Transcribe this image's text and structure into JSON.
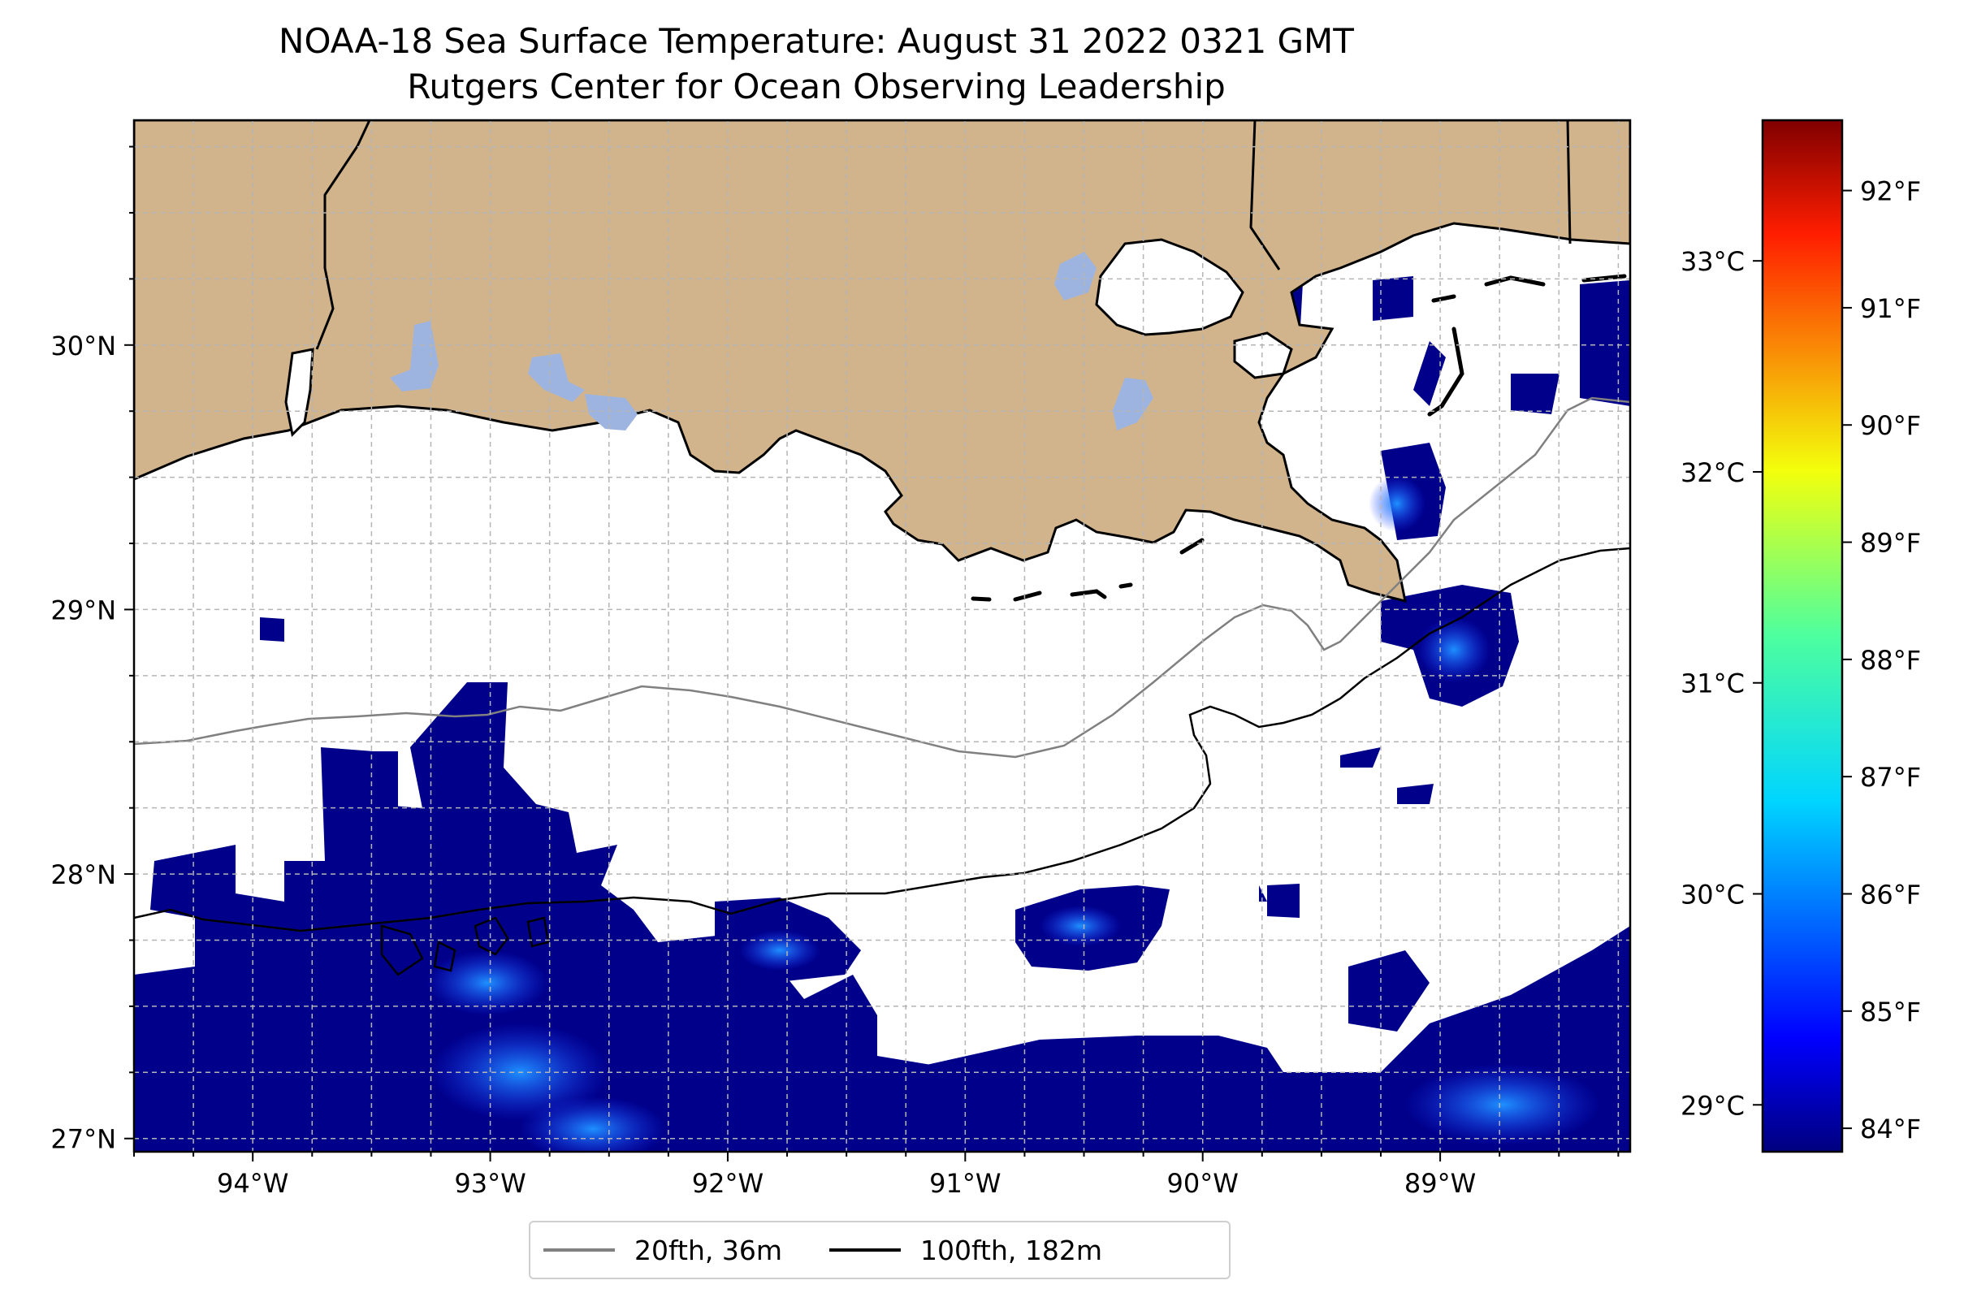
{
  "title": {
    "line1": "NOAA-18 Sea Surface Temperature: August 31 2022 0321 GMT",
    "line2": "Rutgers Center for Ocean Observing Leadership"
  },
  "map": {
    "lon_range": [
      -94.5,
      -88.2
    ],
    "lat_range": [
      26.95,
      30.85
    ],
    "lon_ticks": [
      {
        "value": -94,
        "label": "94°W"
      },
      {
        "value": -93,
        "label": "93°W"
      },
      {
        "value": -92,
        "label": "92°W"
      },
      {
        "value": -91,
        "label": "91°W"
      },
      {
        "value": -90,
        "label": "90°W"
      },
      {
        "value": -89,
        "label": "89°W"
      }
    ],
    "lat_ticks": [
      {
        "value": 27,
        "label": "27°N"
      },
      {
        "value": 28,
        "label": "28°N"
      },
      {
        "value": 29,
        "label": "29°N"
      },
      {
        "value": 30,
        "label": "30°N"
      }
    ],
    "gridlines": "dashed, every 0.25°",
    "colors": {
      "land": "#d2b48c",
      "lakes": "#9db4e0",
      "cloud_mask": "#ffffff",
      "sst_cool": "#00008b",
      "sst_mid": "#1e3cff",
      "isobath_20fth": "#808080",
      "isobath_100fth": "#000000"
    }
  },
  "colorbar": {
    "colormap": "jet",
    "fahrenheit_ticks": [
      "84°F",
      "85°F",
      "86°F",
      "87°F",
      "88°F",
      "89°F",
      "90°F",
      "91°F",
      "92°F"
    ],
    "celsius_ticks": [
      "29°C",
      "30°C",
      "31°C",
      "32°C",
      "33°C"
    ],
    "range_f": [
      83.8,
      92.6
    ]
  },
  "legend": [
    {
      "label": "20fth, 36m",
      "color": "#808080"
    },
    {
      "label": "100fth, 182m",
      "color": "#000000"
    }
  ]
}
